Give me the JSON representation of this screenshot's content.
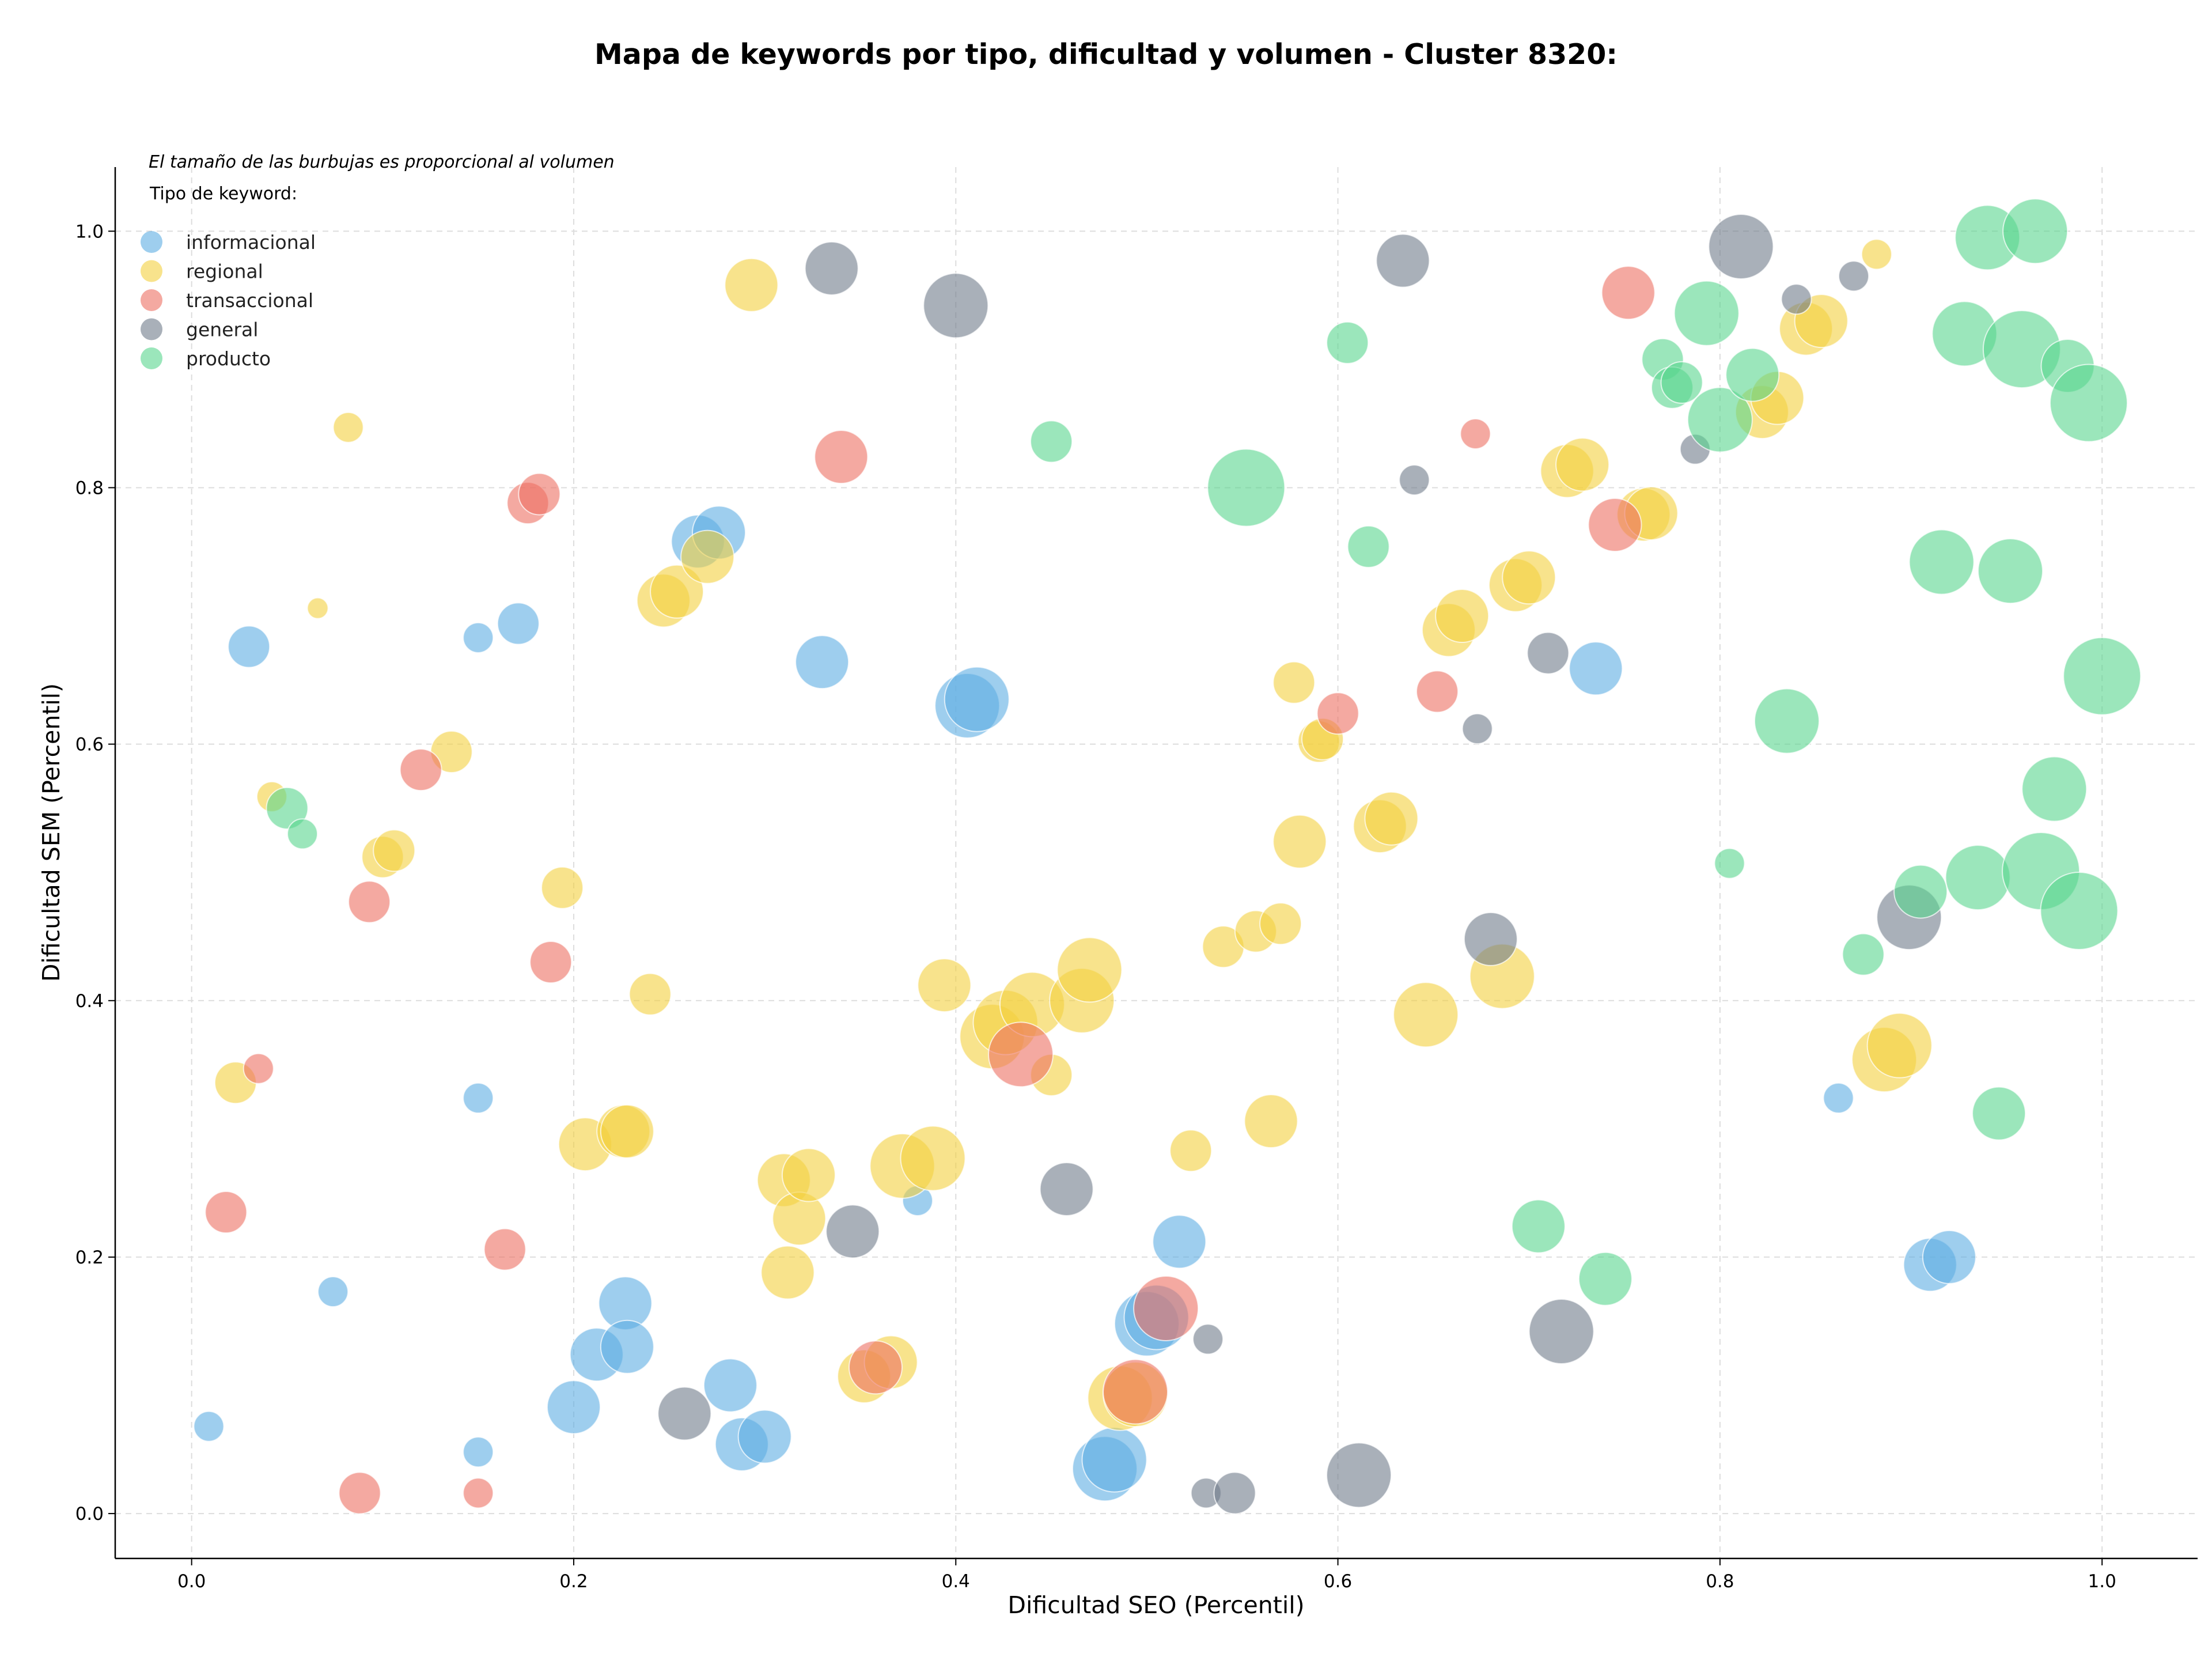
{
  "chart_data": {
    "type": "scatter",
    "title": "Mapa de keywords por tipo, dificultad y volumen - Cluster 8320:",
    "xlabel": "Dificultad SEO (Percentil)",
    "ylabel": "Dificultad SEM (Percentil)",
    "xlim": [
      -0.04,
      1.05
    ],
    "ylim": [
      -0.035,
      1.05
    ],
    "xticks": [
      "0.0",
      "0.2",
      "0.4",
      "0.6",
      "0.8",
      "1.0"
    ],
    "yticks": [
      "0.0",
      "0.2",
      "0.4",
      "0.6",
      "0.8",
      "1.0"
    ],
    "grid": true,
    "annotation": "El tamaño de las burbujas es proporcional al volumen",
    "legend": {
      "title": "Tipo de keyword:",
      "placement": "top-left"
    },
    "series": [
      {
        "name": "informacional",
        "color": "#5dade2",
        "points": [
          [
            0.03,
            0.676,
            3
          ],
          [
            0.15,
            0.683,
            2
          ],
          [
            0.171,
            0.694,
            3
          ],
          [
            0.265,
            0.758,
            4
          ],
          [
            0.276,
            0.765,
            4
          ],
          [
            0.33,
            0.664,
            4
          ],
          [
            0.406,
            0.63,
            5
          ],
          [
            0.411,
            0.635,
            5
          ],
          [
            0.735,
            0.659,
            4
          ],
          [
            0.15,
            0.324,
            2
          ],
          [
            0.074,
            0.173,
            2
          ],
          [
            0.009,
            0.068,
            2
          ],
          [
            0.15,
            0.048,
            2
          ],
          [
            0.2,
            0.083,
            4
          ],
          [
            0.212,
            0.124,
            4
          ],
          [
            0.227,
            0.164,
            4
          ],
          [
            0.228,
            0.13,
            4
          ],
          [
            0.282,
            0.1,
            4
          ],
          [
            0.288,
            0.054,
            4
          ],
          [
            0.3,
            0.06,
            4
          ],
          [
            0.38,
            0.244,
            2
          ],
          [
            0.478,
            0.035,
            5
          ],
          [
            0.483,
            0.042,
            5
          ],
          [
            0.5,
            0.148,
            5
          ],
          [
            0.505,
            0.153,
            5
          ],
          [
            0.517,
            0.212,
            4
          ],
          [
            0.862,
            0.324,
            2
          ],
          [
            0.91,
            0.194,
            4
          ],
          [
            0.92,
            0.2,
            4
          ]
        ]
      },
      {
        "name": "regional",
        "color": "#f4d03f",
        "points": [
          [
            0.082,
            0.847,
            2
          ],
          [
            0.066,
            0.706,
            1
          ],
          [
            0.136,
            0.594,
            3
          ],
          [
            0.042,
            0.559,
            2
          ],
          [
            0.1,
            0.512,
            3
          ],
          [
            0.106,
            0.517,
            3
          ],
          [
            0.194,
            0.488,
            3
          ],
          [
            0.24,
            0.405,
            3
          ],
          [
            0.023,
            0.336,
            3
          ],
          [
            0.206,
            0.288,
            4
          ],
          [
            0.226,
            0.298,
            4
          ],
          [
            0.228,
            0.298,
            4
          ],
          [
            0.247,
            0.712,
            4
          ],
          [
            0.254,
            0.719,
            4
          ],
          [
            0.27,
            0.746,
            4
          ],
          [
            0.293,
            0.958,
            4
          ],
          [
            0.31,
            0.26,
            4
          ],
          [
            0.312,
            0.188,
            4
          ],
          [
            0.318,
            0.23,
            4
          ],
          [
            0.323,
            0.264,
            4
          ],
          [
            0.352,
            0.107,
            4
          ],
          [
            0.366,
            0.118,
            4
          ],
          [
            0.372,
            0.271,
            5
          ],
          [
            0.388,
            0.277,
            5
          ],
          [
            0.394,
            0.412,
            4
          ],
          [
            0.419,
            0.372,
            5
          ],
          [
            0.426,
            0.383,
            5
          ],
          [
            0.44,
            0.397,
            5
          ],
          [
            0.45,
            0.342,
            3
          ],
          [
            0.466,
            0.4,
            5
          ],
          [
            0.47,
            0.424,
            5
          ],
          [
            0.486,
            0.09,
            5
          ],
          [
            0.494,
            0.093,
            5
          ],
          [
            0.523,
            0.283,
            3
          ],
          [
            0.54,
            0.442,
            3
          ],
          [
            0.557,
            0.454,
            3
          ],
          [
            0.57,
            0.46,
            3
          ],
          [
            0.565,
            0.306,
            4
          ],
          [
            0.577,
            0.648,
            3
          ],
          [
            0.58,
            0.524,
            4
          ],
          [
            0.59,
            0.602,
            3
          ],
          [
            0.592,
            0.604,
            3
          ],
          [
            0.622,
            0.536,
            4
          ],
          [
            0.628,
            0.542,
            4
          ],
          [
            0.646,
            0.389,
            5
          ],
          [
            0.658,
            0.689,
            4
          ],
          [
            0.665,
            0.7,
            4
          ],
          [
            0.686,
            0.419,
            5
          ],
          [
            0.693,
            0.724,
            4
          ],
          [
            0.7,
            0.73,
            4
          ],
          [
            0.72,
            0.813,
            4
          ],
          [
            0.728,
            0.818,
            4
          ],
          [
            0.76,
            0.779,
            4
          ],
          [
            0.764,
            0.78,
            4
          ],
          [
            0.822,
            0.859,
            4
          ],
          [
            0.83,
            0.87,
            4
          ],
          [
            0.845,
            0.924,
            4
          ],
          [
            0.853,
            0.93,
            4
          ],
          [
            0.882,
            0.982,
            2
          ],
          [
            0.886,
            0.354,
            5
          ],
          [
            0.894,
            0.365,
            5
          ]
        ]
      },
      {
        "name": "transaccional",
        "color": "#ec7063",
        "points": [
          [
            0.176,
            0.788,
            3
          ],
          [
            0.182,
            0.795,
            3
          ],
          [
            0.34,
            0.824,
            4
          ],
          [
            0.12,
            0.58,
            3
          ],
          [
            0.093,
            0.477,
            3
          ],
          [
            0.188,
            0.43,
            3
          ],
          [
            0.035,
            0.347,
            2
          ],
          [
            0.018,
            0.235,
            3
          ],
          [
            0.164,
            0.206,
            3
          ],
          [
            0.088,
            0.016,
            3
          ],
          [
            0.15,
            0.016,
            2
          ],
          [
            0.358,
            0.114,
            4
          ],
          [
            0.434,
            0.358,
            5
          ],
          [
            0.494,
            0.095,
            5
          ],
          [
            0.51,
            0.16,
            5
          ],
          [
            0.6,
            0.624,
            3
          ],
          [
            0.652,
            0.641,
            3
          ],
          [
            0.672,
            0.842,
            2
          ],
          [
            0.745,
            0.771,
            4
          ],
          [
            0.752,
            0.952,
            4
          ]
        ]
      },
      {
        "name": "general",
        "color": "#707b8a",
        "points": [
          [
            0.335,
            0.971,
            4
          ],
          [
            0.4,
            0.942,
            5
          ],
          [
            0.346,
            0.22,
            4
          ],
          [
            0.258,
            0.078,
            4
          ],
          [
            0.458,
            0.253,
            4
          ],
          [
            0.532,
            0.136,
            2
          ],
          [
            0.531,
            0.016,
            2
          ],
          [
            0.546,
            0.016,
            3
          ],
          [
            0.611,
            0.03,
            5
          ],
          [
            0.634,
            0.977,
            4
          ],
          [
            0.64,
            0.806,
            2
          ],
          [
            0.673,
            0.612,
            2
          ],
          [
            0.68,
            0.448,
            4
          ],
          [
            0.71,
            0.671,
            3
          ],
          [
            0.717,
            0.142,
            5
          ],
          [
            0.787,
            0.83,
            2
          ],
          [
            0.811,
            0.988,
            5
          ],
          [
            0.84,
            0.947,
            2
          ],
          [
            0.87,
            0.965,
            2
          ],
          [
            0.899,
            0.465,
            5
          ]
        ]
      },
      {
        "name": "producto",
        "color": "#58d68d",
        "points": [
          [
            0.05,
            0.55,
            3
          ],
          [
            0.058,
            0.53,
            2
          ],
          [
            0.45,
            0.836,
            3
          ],
          [
            0.552,
            0.8,
            6
          ],
          [
            0.605,
            0.913,
            3
          ],
          [
            0.616,
            0.754,
            3
          ],
          [
            0.705,
            0.224,
            4
          ],
          [
            0.74,
            0.183,
            4
          ],
          [
            0.77,
            0.9,
            3
          ],
          [
            0.775,
            0.878,
            3
          ],
          [
            0.78,
            0.882,
            3
          ],
          [
            0.793,
            0.936,
            5
          ],
          [
            0.8,
            0.853,
            5
          ],
          [
            0.817,
            0.888,
            4
          ],
          [
            0.805,
            0.507,
            2
          ],
          [
            0.835,
            0.618,
            5
          ],
          [
            0.875,
            0.436,
            3
          ],
          [
            0.905,
            0.485,
            4
          ],
          [
            0.916,
            0.742,
            5
          ],
          [
            0.928,
            0.92,
            5
          ],
          [
            0.935,
            0.496,
            5
          ],
          [
            0.94,
            0.995,
            5
          ],
          [
            0.946,
            0.312,
            4
          ],
          [
            0.952,
            0.735,
            5
          ],
          [
            0.958,
            0.908,
            6
          ],
          [
            0.965,
            1.0,
            5
          ],
          [
            0.968,
            0.501,
            6
          ],
          [
            0.975,
            0.565,
            5
          ],
          [
            0.982,
            0.895,
            4
          ],
          [
            0.988,
            0.47,
            6
          ],
          [
            0.993,
            0.866,
            6
          ],
          [
            1.0,
            0.653,
            6
          ]
        ]
      }
    ]
  }
}
